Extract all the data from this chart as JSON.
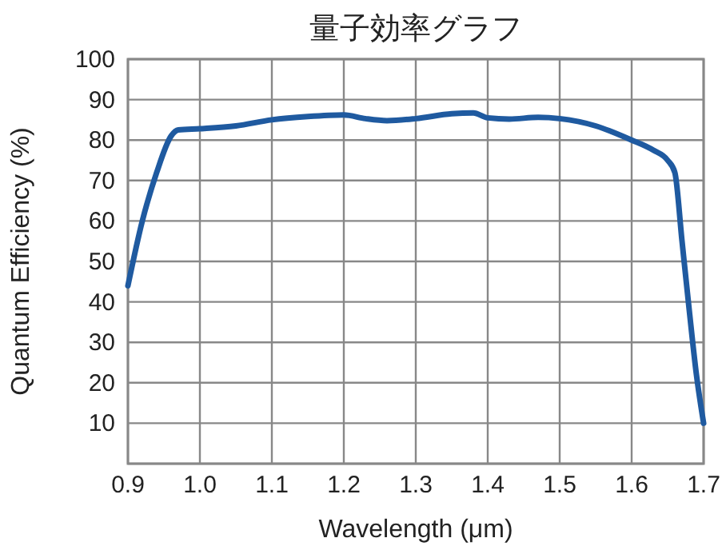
{
  "chart_data": {
    "type": "line",
    "title": "量子効率グラフ",
    "xlabel": "Wavelength (μm)",
    "ylabel": "Quantum Efficiency (%)",
    "xlim": [
      0.9,
      1.7
    ],
    "xticks": [
      {
        "value": 0.9,
        "label": "0.9"
      },
      {
        "value": 1.0,
        "label": "1.0"
      },
      1.1,
      1.2,
      1.3,
      1.4,
      1.5,
      1.6,
      1.7
    ],
    "ylim": [
      0,
      100
    ],
    "yticks": [
      {
        "value": 0,
        "label": null
      },
      10,
      20,
      30,
      40,
      50,
      60,
      70,
      80,
      90,
      100
    ],
    "grid": true,
    "series": [
      {
        "color": "#1f5aa0",
        "x": [
          0.9,
          0.92,
          0.94,
          0.96,
          0.97,
          1.0,
          1.05,
          1.1,
          1.15,
          1.2,
          1.23,
          1.26,
          1.3,
          1.35,
          1.38,
          1.4,
          1.43,
          1.47,
          1.5,
          1.55,
          1.6,
          1.63,
          1.65,
          1.66,
          1.67,
          1.68,
          1.69,
          1.7
        ],
        "values": [
          44,
          60,
          72,
          81,
          82.5,
          82.8,
          83.5,
          85,
          85.8,
          86.2,
          85.3,
          84.8,
          85.3,
          86.5,
          86.7,
          85.5,
          85.2,
          85.6,
          85.3,
          83.5,
          80,
          77.5,
          75,
          72,
          55,
          38,
          22,
          10
        ]
      }
    ]
  }
}
